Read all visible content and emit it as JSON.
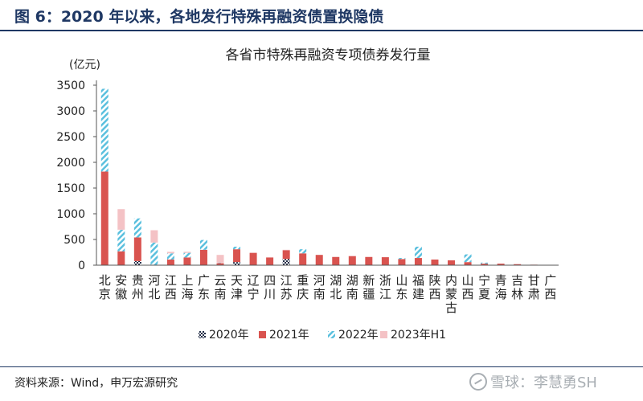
{
  "figure_label": "图 6：2020 年以来，各地发行特殊再融资债置换隐债",
  "source_note": "资料来源：Wind，申万宏源研究",
  "watermark": "雪球：李慧勇SH",
  "colors": {
    "2020年": "#1f2a44",
    "2021年": "#d9534f",
    "2022年": "#5bc0de",
    "2023年H1": "#f4c2c5",
    "accent": "#1f3864"
  },
  "chart_data": {
    "type": "bar",
    "stacked": true,
    "title": "各省市特殊再融资专项债券发行量",
    "ylabel": "(亿元)",
    "xlabel": "",
    "ylim": [
      0,
      3500
    ],
    "yticks": [
      0,
      500,
      1000,
      1500,
      2000,
      2500,
      3000,
      3500
    ],
    "legend_position": "bottom",
    "categories": [
      "北京",
      "安徽",
      "贵州",
      "河北",
      "江西",
      "上海",
      "广东",
      "云南",
      "天津",
      "辽宁",
      "四川",
      "江苏",
      "重庆",
      "河南",
      "湖北",
      "湖南",
      "新疆",
      "浙江",
      "山东",
      "福建",
      "陕西",
      "内蒙古",
      "山西",
      "宁夏",
      "青海",
      "吉林",
      "甘肃",
      "广西"
    ],
    "series": [
      {
        "name": "2020年",
        "values": [
          0,
          0,
          80,
          0,
          0,
          0,
          0,
          0,
          60,
          0,
          0,
          120,
          0,
          0,
          0,
          0,
          0,
          0,
          0,
          0,
          0,
          0,
          0,
          0,
          0,
          0,
          0,
          0
        ]
      },
      {
        "name": "2021年",
        "values": [
          1820,
          270,
          460,
          0,
          110,
          150,
          300,
          40,
          250,
          240,
          150,
          170,
          230,
          200,
          160,
          175,
          160,
          155,
          120,
          140,
          110,
          95,
          60,
          30,
          30,
          20,
          10,
          5
        ]
      },
      {
        "name": "2022年",
        "values": [
          1610,
          420,
          370,
          440,
          120,
          90,
          190,
          10,
          50,
          0,
          0,
          0,
          80,
          0,
          0,
          0,
          0,
          0,
          20,
          220,
          0,
          0,
          150,
          20,
          0,
          0,
          0,
          0
        ]
      },
      {
        "name": "2023年H1",
        "values": [
          0,
          400,
          0,
          240,
          30,
          20,
          0,
          150,
          0,
          0,
          0,
          10,
          0,
          0,
          0,
          10,
          0,
          0,
          0,
          0,
          0,
          0,
          0,
          0,
          0,
          0,
          0,
          0
        ]
      }
    ]
  }
}
